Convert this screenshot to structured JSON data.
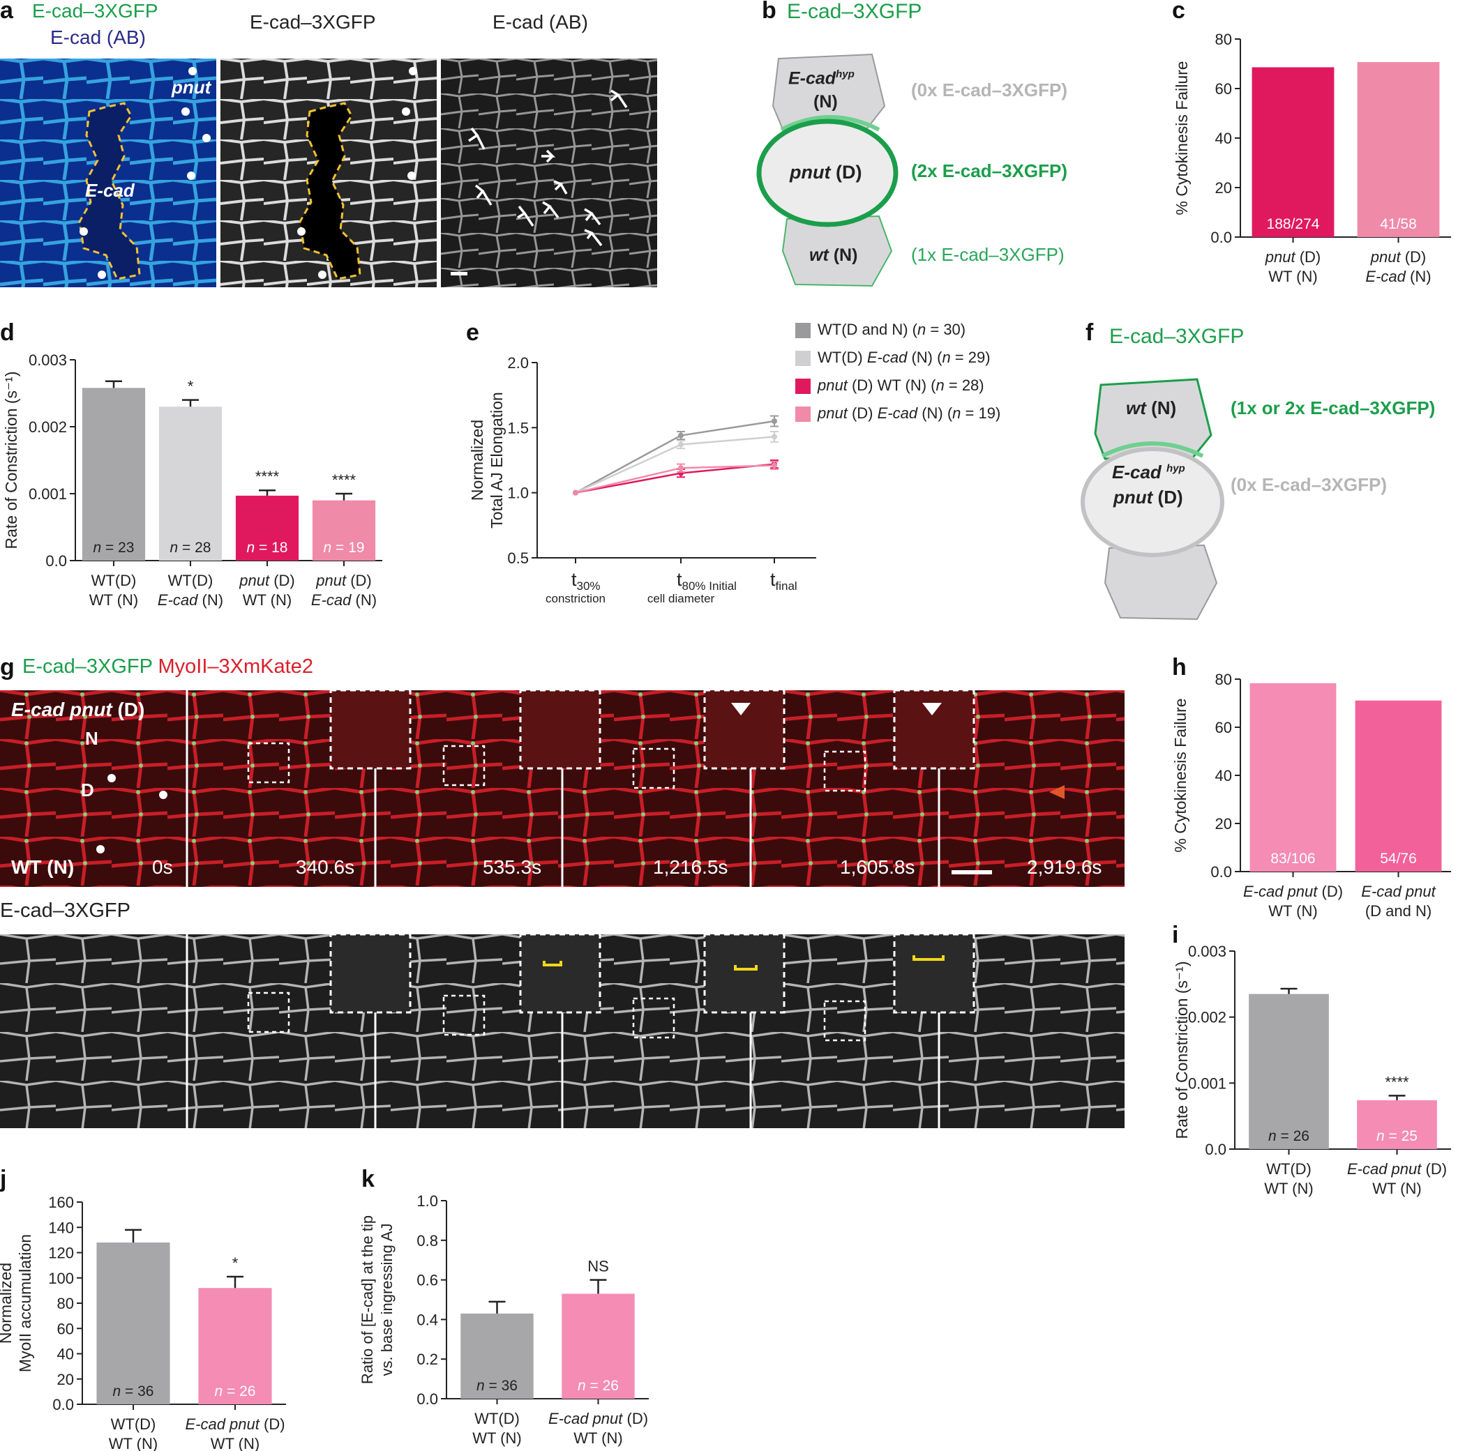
{
  "panel_letters": [
    "a",
    "b",
    "c",
    "d",
    "e",
    "f",
    "g",
    "h",
    "i",
    "j",
    "k"
  ],
  "a": {
    "labels": {
      "merge_green": "E-cad–3XGFP",
      "merge_blue": "E-cad (AB)",
      "mid": "E-cad–3XGFP",
      "right": "E-cad (AB)",
      "pnut": "pnut",
      "ecad": "E-cad"
    },
    "colors": {
      "green": "#1b9e4b",
      "blue": "#2a2a8a",
      "dash": "#f3c233"
    }
  },
  "b": {
    "title": "E-cad–3XGFP",
    "top_cell": "E-cad",
    "top_cell_sup": "hyp",
    "top_cell_n": "(N)",
    "center_cell_i": "pnut",
    "center_cell_d": "(D)",
    "bottom_cell_i": "wt",
    "bottom_cell_n": "(N)",
    "label_top": "(0x E-cad–3XGFP)",
    "label_mid": "(2x E-cad–3XGFP)",
    "label_bot": "(1x E-cad–3XGFP)"
  },
  "f": {
    "title": "E-cad–3XGFP",
    "top_cell_i": "wt",
    "top_cell_n": "(N)",
    "center_cell_i1": "E-cad",
    "center_cell_sup": "hyp",
    "center_cell_i2": "pnut",
    "center_cell_d": "(D)",
    "label_top": "(1x or 2x E-cad–3XGFP)",
    "label_mid": "(0x E-cad–3XGFP)"
  },
  "g": {
    "title_green": "E-cad–3XGFP",
    "title_red": "MyoII–3XmKate2",
    "genotype_i": "E-cad pnut",
    "genotype_d": "(D)",
    "n_label": "N",
    "d_label": "D",
    "wt_label": "WT (N)",
    "times": [
      "0s",
      "340.6s",
      "535.3s",
      "1,216.5s",
      "1,605.8s",
      "2,919.6s"
    ],
    "lower_title": "E-cad–3XGFP"
  },
  "chart_data": [
    {
      "panel": "c",
      "type": "bar",
      "categories": [
        "pnut (D) WT (N)",
        "pnut (D) E-cad (N)"
      ],
      "cat_line1": [
        "pnut (D)",
        "pnut (D)"
      ],
      "cat_line2": [
        "WT (N)",
        "E-cad (N)"
      ],
      "values": [
        68.6,
        70.7
      ],
      "bar_labels": [
        "188/274",
        "41/58"
      ],
      "colors": [
        "#e0195f",
        "#ef8aa9"
      ],
      "ylabel": "% Cytokinesis Failure",
      "ylim": [
        0,
        80
      ],
      "yticks": [
        "0.0",
        "20",
        "40",
        "60",
        "80"
      ]
    },
    {
      "panel": "d",
      "type": "bar",
      "categories": [
        "WT(D) WT (N)",
        "WT(D) E-cad (N)",
        "pnut (D) WT (N)",
        "pnut (D) E-cad (N)"
      ],
      "cat_line1": [
        "WT(D)",
        "WT(D)",
        "pnut (D)",
        "pnut (D)"
      ],
      "cat_line2": [
        "WT (N)",
        "E-cad (N)",
        "WT (N)",
        "E-cad (N)"
      ],
      "values": [
        0.00258,
        0.0023,
        0.00097,
        0.0009
      ],
      "errors": [
        0.0001,
        0.0001,
        8e-05,
        0.0001
      ],
      "bar_labels": [
        "n = 23",
        "n = 28",
        "n = 18",
        "n = 19"
      ],
      "significance": [
        "",
        "*",
        "****",
        "****"
      ],
      "colors": [
        "#a7a7a9",
        "#d6d6d8",
        "#e0195f",
        "#ef8aa9"
      ],
      "ylabel": "Rate of Constriction (s⁻¹)",
      "ylim": [
        0,
        0.003
      ],
      "yticks": [
        "0.0",
        "0.001",
        "0.002",
        "0.003"
      ]
    },
    {
      "panel": "e",
      "type": "line",
      "x_labels": [
        {
          "main": "t",
          "sub": "30%",
          "below": "constriction"
        },
        {
          "main": "t",
          "sub": "80% Initial",
          "below": "cell diameter"
        },
        {
          "main": "t",
          "sub": "final",
          "below": ""
        }
      ],
      "ylabel_line1": "Normalized",
      "ylabel_line2": "Total AJ Elongation",
      "ylim": [
        0.5,
        2.0
      ],
      "yticks": [
        "0.5",
        "1.0",
        "1.5",
        "2.0"
      ],
      "series": [
        {
          "name": "WT(D and N) (n = 30)",
          "legend_a": "WT(D and N) (",
          "legend_n": "n",
          "legend_b": " = 30)",
          "color": "#9a9a9c",
          "values": [
            1.0,
            1.44,
            1.55
          ],
          "errors": [
            0,
            0.03,
            0.04
          ]
        },
        {
          "name": "WT(D) E-cad (N) (n = 29)",
          "legend_a": "WT(D) ",
          "legend_i": "E-cad",
          "legend_c": " (N) (",
          "legend_n": "n",
          "legend_b": " = 29)",
          "color": "#cfcfd1",
          "values": [
            1.0,
            1.37,
            1.43
          ],
          "errors": [
            0,
            0.03,
            0.04
          ]
        },
        {
          "name": "pnut (D) WT (N) (n = 28)",
          "legend_i": "pnut",
          "legend_c": " (D) WT (N) (",
          "legend_n": "n",
          "legend_b": " = 28)",
          "color": "#e0195f",
          "values": [
            1.0,
            1.15,
            1.22
          ],
          "errors": [
            0,
            0.03,
            0.03
          ]
        },
        {
          "name": "pnut (D) E-cad (N) (n = 19)",
          "legend_i": "pnut",
          "legend_c": " (D) ",
          "legend_i2": "E-cad",
          "legend_c2": " (N) (",
          "legend_n": "n",
          "legend_b": " = 19)",
          "color": "#ef8aa9",
          "values": [
            1.0,
            1.19,
            1.21
          ],
          "errors": [
            0,
            0.03,
            0.03
          ]
        }
      ]
    },
    {
      "panel": "h",
      "type": "bar",
      "categories": [
        "E-cad pnut (D) WT (N)",
        "E-cad pnut (D and N)"
      ],
      "cat_line1": [
        "E-cad pnut (D)",
        "E-cad pnut"
      ],
      "cat_line2": [
        "WT (N)",
        "(D and N)"
      ],
      "values": [
        78.3,
        71.1
      ],
      "bar_labels": [
        "83/106",
        "54/76"
      ],
      "colors": [
        "#f48cb4",
        "#f2619a"
      ],
      "ylabel": "% Cytokinesis Failure",
      "ylim": [
        0,
        80
      ],
      "yticks": [
        "0.0",
        "20",
        "40",
        "60",
        "80"
      ]
    },
    {
      "panel": "i",
      "type": "bar",
      "categories": [
        "WT(D) WT (N)",
        "E-cad pnut (D) WT (N)"
      ],
      "cat_line1": [
        "WT(D)",
        "E-cad pnut (D)"
      ],
      "cat_line2": [
        "WT (N)",
        "WT (N)"
      ],
      "values": [
        0.00235,
        0.00074
      ],
      "errors": [
        8e-05,
        7e-05
      ],
      "bar_labels": [
        "n = 26",
        "n = 25"
      ],
      "significance": [
        "",
        "****"
      ],
      "colors": [
        "#a7a7a9",
        "#f48cb4"
      ],
      "ylabel": "Rate of Constriction (s⁻¹)",
      "ylim": [
        0,
        0.003
      ],
      "yticks": [
        "0.0",
        "0.001",
        "0.002",
        "0.003"
      ]
    },
    {
      "panel": "j",
      "type": "bar",
      "categories": [
        "WT(D) WT (N)",
        "E-cad pnut (D) WT (N)"
      ],
      "cat_line1": [
        "WT(D)",
        "E-cad pnut (D)"
      ],
      "cat_line2": [
        "WT (N)",
        "WT (N)"
      ],
      "values": [
        128,
        92
      ],
      "errors": [
        10,
        9
      ],
      "bar_labels": [
        "n = 36",
        "n = 26"
      ],
      "significance": [
        "",
        "*"
      ],
      "colors": [
        "#a7a7a9",
        "#f48cb4"
      ],
      "ylabel_line1": "Normalized",
      "ylabel_line2": "MyoII accumulation",
      "ylim": [
        0,
        160
      ],
      "yticks": [
        "0.0",
        "20",
        "40",
        "60",
        "80",
        "100",
        "120",
        "140",
        "160"
      ]
    },
    {
      "panel": "k",
      "type": "bar",
      "categories": [
        "WT(D) WT (N)",
        "E-cad pnut (D) WT (N)"
      ],
      "cat_line1": [
        "WT(D)",
        "E-cad pnut (D)"
      ],
      "cat_line2": [
        "WT (N)",
        "WT (N)"
      ],
      "values": [
        0.43,
        0.53
      ],
      "errors": [
        0.06,
        0.07
      ],
      "bar_labels": [
        "n = 36",
        "n = 26"
      ],
      "significance": [
        "",
        "NS"
      ],
      "colors": [
        "#a7a7a9",
        "#f48cb4"
      ],
      "ylabel_line1": "Ratio of [E-cad] at the tip",
      "ylabel_line2": "vs. base ingressing AJ",
      "ylim": [
        0,
        1.0
      ],
      "yticks": [
        "0.0",
        "0.2",
        "0.4",
        "0.6",
        "0.8",
        "1.0"
      ]
    }
  ]
}
